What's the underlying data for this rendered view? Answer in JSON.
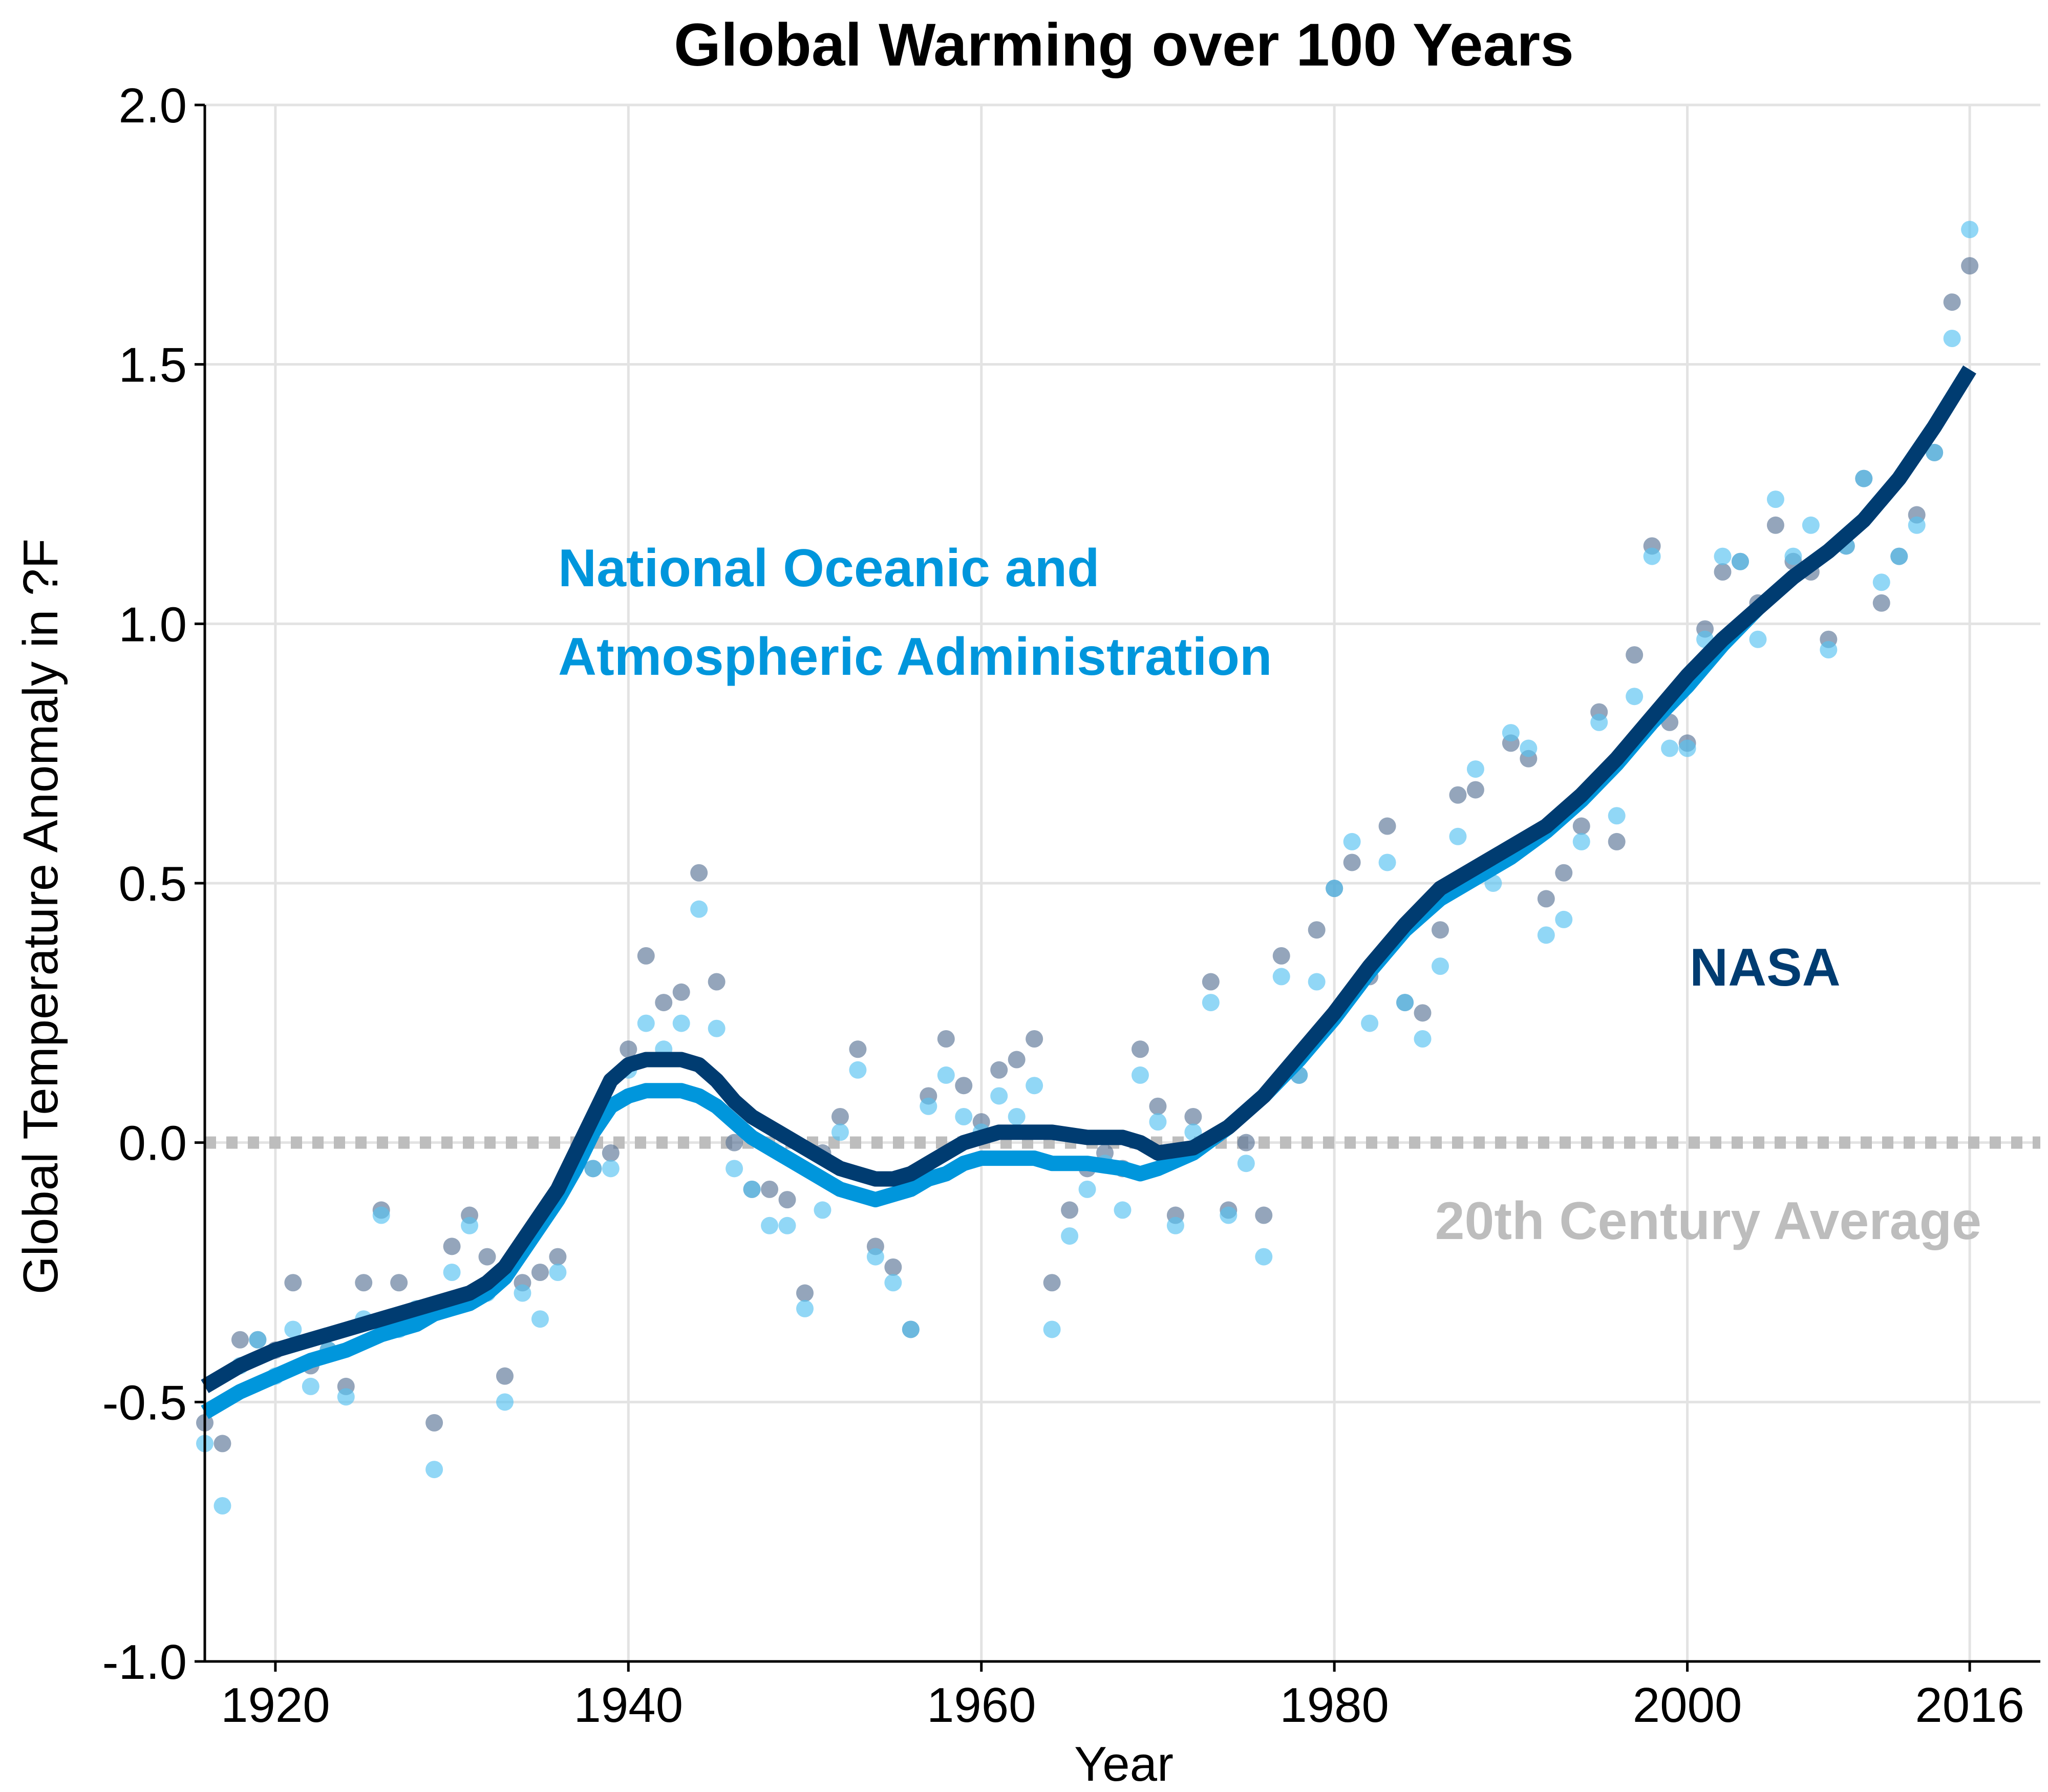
{
  "colors": {
    "nasa": "#003C71",
    "noaa": "#0096DC",
    "noaa_points": "#56C1F1",
    "nasa_points": "#5A7597",
    "baseline": "#BDBDBD",
    "grid": "#E3E3E3",
    "axis": "#000000"
  },
  "chart_data": {
    "type": "scatter",
    "title": "Global Warming over 100 Years",
    "xlabel": "Year",
    "ylabel": "Global Temperature Anomaly in ?F",
    "xlim": [
      1916,
      2020
    ],
    "ylim": [
      -1.0,
      2.0
    ],
    "x_ticks": [
      1920,
      1940,
      1960,
      1980,
      2000,
      2016
    ],
    "x_tick_labels": [
      "1920",
      "1940",
      "1960",
      "1980",
      "2000",
      "2016"
    ],
    "y_ticks": [
      -1.0,
      -0.5,
      0.0,
      0.5,
      1.0,
      1.5,
      2.0
    ],
    "y_tick_labels": [
      "-1.0",
      "-0.5",
      "0.0",
      "0.5",
      "1.0",
      "1.5",
      "2.0"
    ],
    "grid": true,
    "legend": "none (direct labels)",
    "baseline": {
      "y": 0.0,
      "style": "dotted",
      "label": "20th Century Average"
    },
    "annotations": {
      "noaa_line1": "National Oceanic and",
      "noaa_line2": "Atmospheric Administration",
      "nasa": "NASA",
      "baseline": "20th Century Average"
    },
    "series": [
      {
        "name": "NASA",
        "role": "points",
        "x": [
          1916,
          1917,
          1918,
          1919,
          1920,
          1921,
          1922,
          1923,
          1924,
          1925,
          1926,
          1927,
          1928,
          1929,
          1930,
          1931,
          1932,
          1933,
          1934,
          1935,
          1936,
          1937,
          1938,
          1939,
          1940,
          1941,
          1942,
          1943,
          1944,
          1945,
          1946,
          1947,
          1948,
          1949,
          1950,
          1951,
          1952,
          1953,
          1954,
          1955,
          1956,
          1957,
          1958,
          1959,
          1960,
          1961,
          1962,
          1963,
          1964,
          1965,
          1966,
          1967,
          1968,
          1969,
          1970,
          1971,
          1972,
          1973,
          1974,
          1975,
          1976,
          1977,
          1978,
          1979,
          1980,
          1981,
          1982,
          1983,
          1984,
          1985,
          1986,
          1987,
          1988,
          1989,
          1990,
          1991,
          1992,
          1993,
          1994,
          1995,
          1996,
          1997,
          1998,
          1999,
          2000,
          2001,
          2002,
          2003,
          2004,
          2005,
          2006,
          2007,
          2008,
          2009,
          2010,
          2011,
          2012,
          2013,
          2014,
          2015,
          2016
        ],
        "y": [
          -0.54,
          -0.58,
          -0.38,
          -0.38,
          -0.4,
          -0.27,
          -0.43,
          -0.4,
          -0.47,
          -0.27,
          -0.13,
          -0.27,
          -0.34,
          -0.54,
          -0.2,
          -0.14,
          -0.22,
          -0.45,
          -0.27,
          -0.25,
          -0.22,
          -0.04,
          -0.05,
          -0.02,
          0.18,
          0.36,
          0.27,
          0.29,
          0.52,
          0.31,
          0.0,
          -0.09,
          -0.09,
          -0.11,
          -0.29,
          -0.02,
          0.05,
          0.18,
          -0.2,
          -0.24,
          -0.36,
          0.09,
          0.2,
          0.11,
          0.04,
          0.14,
          0.16,
          0.2,
          -0.27,
          -0.13,
          -0.05,
          -0.02,
          -0.05,
          0.18,
          0.07,
          -0.14,
          0.05,
          0.31,
          -0.13,
          0.0,
          -0.14,
          0.36,
          0.13,
          0.41,
          0.49,
          0.54,
          0.32,
          0.61,
          0.27,
          0.25,
          0.41,
          0.67,
          0.68,
          0.54,
          0.77,
          0.74,
          0.47,
          0.52,
          0.61,
          0.83,
          0.58,
          0.94,
          1.15,
          0.81,
          0.77,
          0.99,
          1.1,
          1.12,
          1.04,
          1.19,
          1.12,
          1.1,
          0.97,
          1.15,
          1.28,
          1.04,
          1.13,
          1.21,
          1.33,
          1.62,
          1.69
        ]
      },
      {
        "name": "National Oceanic and Atmospheric Administration",
        "role": "points",
        "x": [
          1916,
          1917,
          1918,
          1919,
          1920,
          1921,
          1922,
          1923,
          1924,
          1925,
          1926,
          1927,
          1928,
          1929,
          1930,
          1931,
          1932,
          1933,
          1934,
          1935,
          1936,
          1937,
          1938,
          1939,
          1940,
          1941,
          1942,
          1943,
          1944,
          1945,
          1946,
          1947,
          1948,
          1949,
          1950,
          1951,
          1952,
          1953,
          1954,
          1955,
          1956,
          1957,
          1958,
          1959,
          1960,
          1961,
          1962,
          1963,
          1964,
          1965,
          1966,
          1967,
          1968,
          1969,
          1970,
          1971,
          1972,
          1973,
          1974,
          1975,
          1976,
          1977,
          1978,
          1979,
          1980,
          1981,
          1982,
          1983,
          1984,
          1985,
          1986,
          1987,
          1988,
          1989,
          1990,
          1991,
          1992,
          1993,
          1994,
          1995,
          1996,
          1997,
          1998,
          1999,
          2000,
          2001,
          2002,
          2003,
          2004,
          2005,
          2006,
          2007,
          2008,
          2009,
          2010,
          2011,
          2012,
          2013,
          2014,
          2015,
          2016
        ],
        "y": [
          -0.58,
          -0.7,
          -0.43,
          -0.38,
          -0.45,
          -0.36,
          -0.47,
          -0.4,
          -0.49,
          -0.34,
          -0.14,
          -0.36,
          -0.32,
          -0.63,
          -0.25,
          -0.16,
          -0.29,
          -0.5,
          -0.29,
          -0.34,
          -0.25,
          -0.04,
          -0.05,
          -0.05,
          0.14,
          0.23,
          0.18,
          0.23,
          0.45,
          0.22,
          -0.05,
          -0.09,
          -0.16,
          -0.16,
          -0.32,
          -0.13,
          0.02,
          0.14,
          -0.22,
          -0.27,
          -0.36,
          0.07,
          0.13,
          0.05,
          0.02,
          0.09,
          0.05,
          0.11,
          -0.36,
          -0.18,
          -0.09,
          -0.04,
          -0.13,
          0.13,
          0.04,
          -0.16,
          0.02,
          0.27,
          -0.14,
          -0.04,
          -0.22,
          0.32,
          0.13,
          0.31,
          0.49,
          0.58,
          0.23,
          0.54,
          0.27,
          0.2,
          0.34,
          0.59,
          0.72,
          0.5,
          0.79,
          0.76,
          0.4,
          0.43,
          0.58,
          0.81,
          0.63,
          0.86,
          1.13,
          0.76,
          0.76,
          0.97,
          1.13,
          1.12,
          0.97,
          1.24,
          1.13,
          1.19,
          0.95,
          1.15,
          1.28,
          1.08,
          1.13,
          1.19,
          1.33,
          1.55,
          1.76
        ]
      },
      {
        "name": "NASA",
        "role": "smoothed",
        "x": [
          1916,
          1918,
          1920,
          1922,
          1924,
          1926,
          1928,
          1929,
          1930,
          1931,
          1932,
          1933,
          1934,
          1935,
          1936,
          1937,
          1938,
          1939,
          1940,
          1941,
          1942,
          1943,
          1944,
          1945,
          1946,
          1947,
          1948,
          1950,
          1952,
          1953,
          1954,
          1955,
          1956,
          1957,
          1958,
          1959,
          1960,
          1961,
          1962,
          1963,
          1964,
          1966,
          1968,
          1969,
          1970,
          1972,
          1974,
          1976,
          1978,
          1980,
          1982,
          1984,
          1986,
          1988,
          1990,
          1992,
          1994,
          1996,
          1998,
          2000,
          2002,
          2004,
          2006,
          2008,
          2010,
          2012,
          2014,
          2016
        ],
        "y": [
          -0.47,
          -0.43,
          -0.4,
          -0.38,
          -0.36,
          -0.34,
          -0.32,
          -0.31,
          -0.3,
          -0.29,
          -0.27,
          -0.24,
          -0.19,
          -0.14,
          -0.09,
          -0.02,
          0.05,
          0.12,
          0.15,
          0.16,
          0.16,
          0.16,
          0.15,
          0.12,
          0.08,
          0.05,
          0.03,
          -0.01,
          -0.05,
          -0.06,
          -0.07,
          -0.07,
          -0.06,
          -0.04,
          -0.02,
          0.0,
          0.01,
          0.02,
          0.02,
          0.02,
          0.02,
          0.01,
          0.01,
          0.0,
          -0.02,
          -0.01,
          0.03,
          0.09,
          0.17,
          0.25,
          0.34,
          0.42,
          0.49,
          0.53,
          0.57,
          0.61,
          0.67,
          0.74,
          0.82,
          0.9,
          0.97,
          1.03,
          1.09,
          1.14,
          1.2,
          1.28,
          1.38,
          1.49
        ]
      },
      {
        "name": "National Oceanic and Atmospheric Administration",
        "role": "smoothed",
        "x": [
          1916,
          1918,
          1920,
          1922,
          1924,
          1926,
          1928,
          1929,
          1930,
          1931,
          1932,
          1933,
          1934,
          1935,
          1936,
          1937,
          1938,
          1939,
          1940,
          1941,
          1942,
          1943,
          1944,
          1945,
          1946,
          1947,
          1948,
          1950,
          1952,
          1953,
          1954,
          1955,
          1956,
          1957,
          1958,
          1959,
          1960,
          1961,
          1962,
          1963,
          1964,
          1966,
          1968,
          1969,
          1970,
          1972,
          1974,
          1976,
          1978,
          1980,
          1982,
          1984,
          1986,
          1988,
          1990,
          1992,
          1994,
          1996,
          1998,
          2000,
          2002,
          2004,
          2006,
          2008,
          2010,
          2012,
          2014,
          2016
        ],
        "y": [
          -0.52,
          -0.48,
          -0.45,
          -0.42,
          -0.4,
          -0.37,
          -0.35,
          -0.33,
          -0.32,
          -0.31,
          -0.29,
          -0.26,
          -0.21,
          -0.16,
          -0.11,
          -0.05,
          0.02,
          0.07,
          0.09,
          0.1,
          0.1,
          0.1,
          0.09,
          0.07,
          0.04,
          0.01,
          -0.01,
          -0.05,
          -0.09,
          -0.1,
          -0.11,
          -0.1,
          -0.09,
          -0.07,
          -0.06,
          -0.04,
          -0.03,
          -0.03,
          -0.03,
          -0.03,
          -0.04,
          -0.04,
          -0.05,
          -0.06,
          -0.05,
          -0.02,
          0.03,
          0.09,
          0.16,
          0.24,
          0.33,
          0.41,
          0.47,
          0.51,
          0.55,
          0.6,
          0.66,
          0.73,
          0.81,
          0.88,
          0.96,
          1.03,
          1.09,
          1.14,
          1.2,
          1.28,
          1.38,
          1.49
        ]
      }
    ]
  }
}
